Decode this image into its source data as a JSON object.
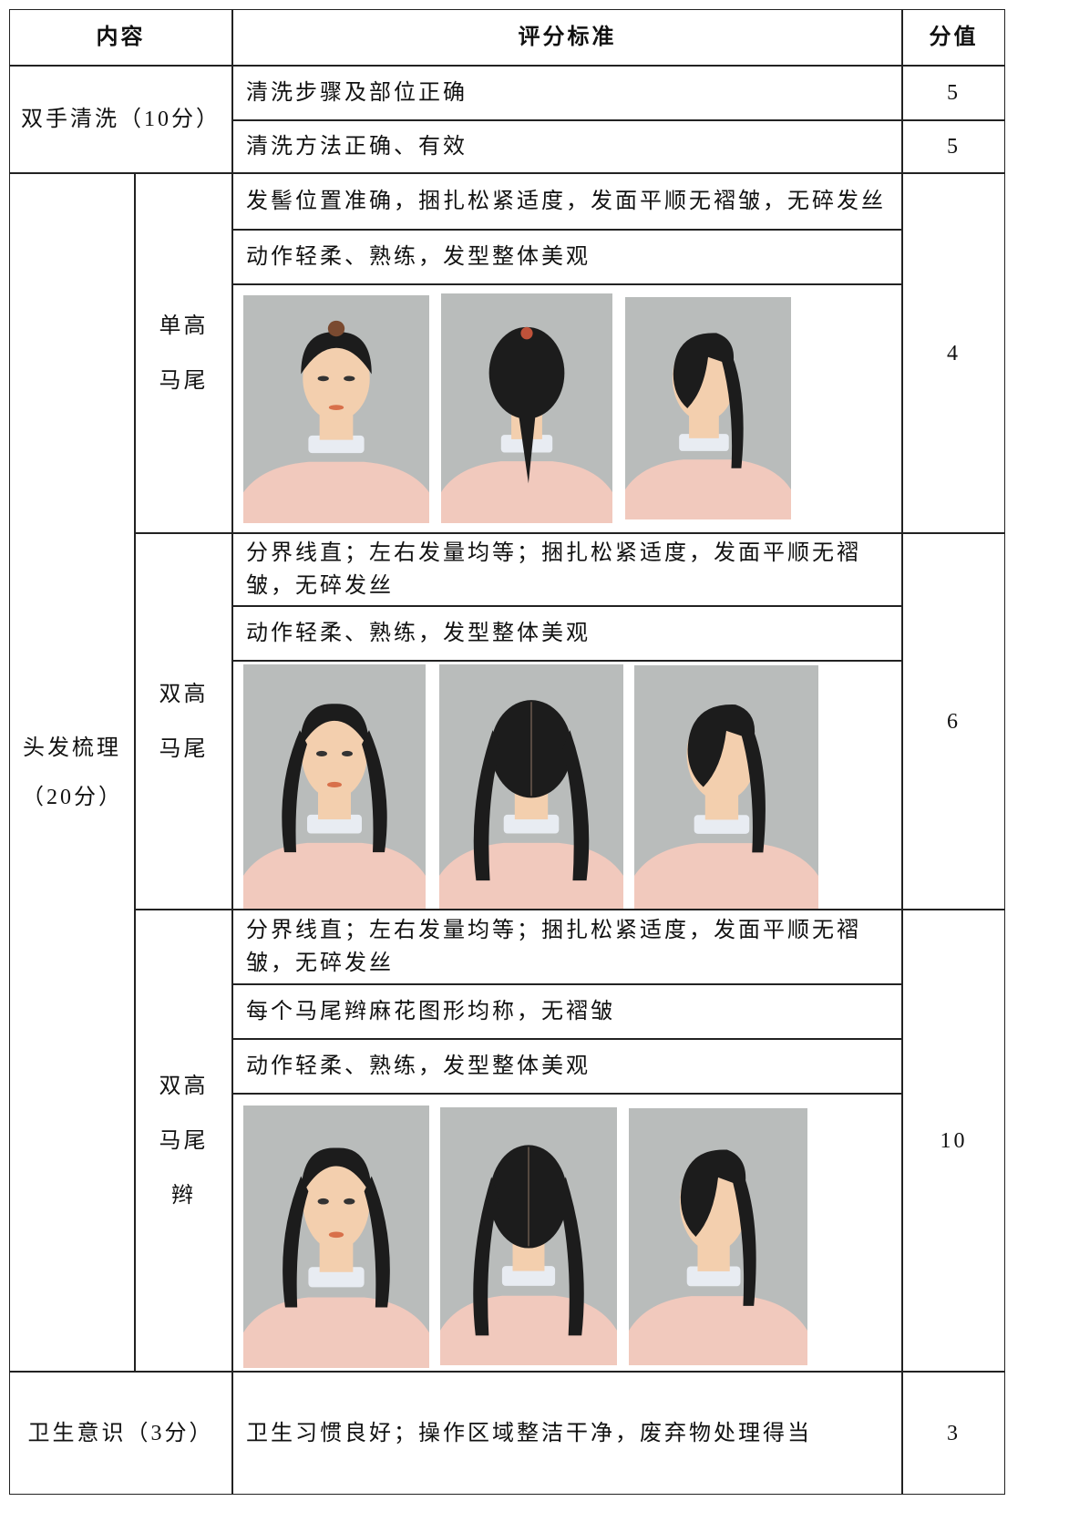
{
  "header": {
    "content": "内容",
    "criteria": "评分标准",
    "score": "分值"
  },
  "hand_washing": {
    "title": "双手清洗（10分）",
    "criteria": [
      "清洗步骤及部位正确",
      "清洗方法正确、有效"
    ],
    "scores": [
      5,
      5
    ]
  },
  "hair": {
    "title": "头发梳理（20分）",
    "styles": [
      {
        "name": "单高马尾",
        "criteria": [
          "发髻位置准确，捆扎松紧适度，发面平顺无褶皱，无碎发丝",
          "动作轻柔、熟练，发型整体美观"
        ],
        "score": 4
      },
      {
        "name": "双高马尾",
        "criteria": [
          "分界线直；左右发量均等；捆扎松紧适度，发面平顺无褶皱，无碎发丝",
          "动作轻柔、熟练，发型整体美观"
        ],
        "score": 6
      },
      {
        "name": "双高马尾辫",
        "criteria": [
          "分界线直；左右发量均等；捆扎松紧适度，发面平顺无褶皱，无碎发丝",
          "每个马尾辫麻花图形均称，无褶皱",
          "动作轻柔、熟练，发型整体美观"
        ],
        "score": 10
      }
    ]
  },
  "hygiene": {
    "title": "卫生意识（3分）",
    "criteria": "卫生习惯良好；操作区域整洁干净，废弃物处理得当",
    "score": 3
  }
}
